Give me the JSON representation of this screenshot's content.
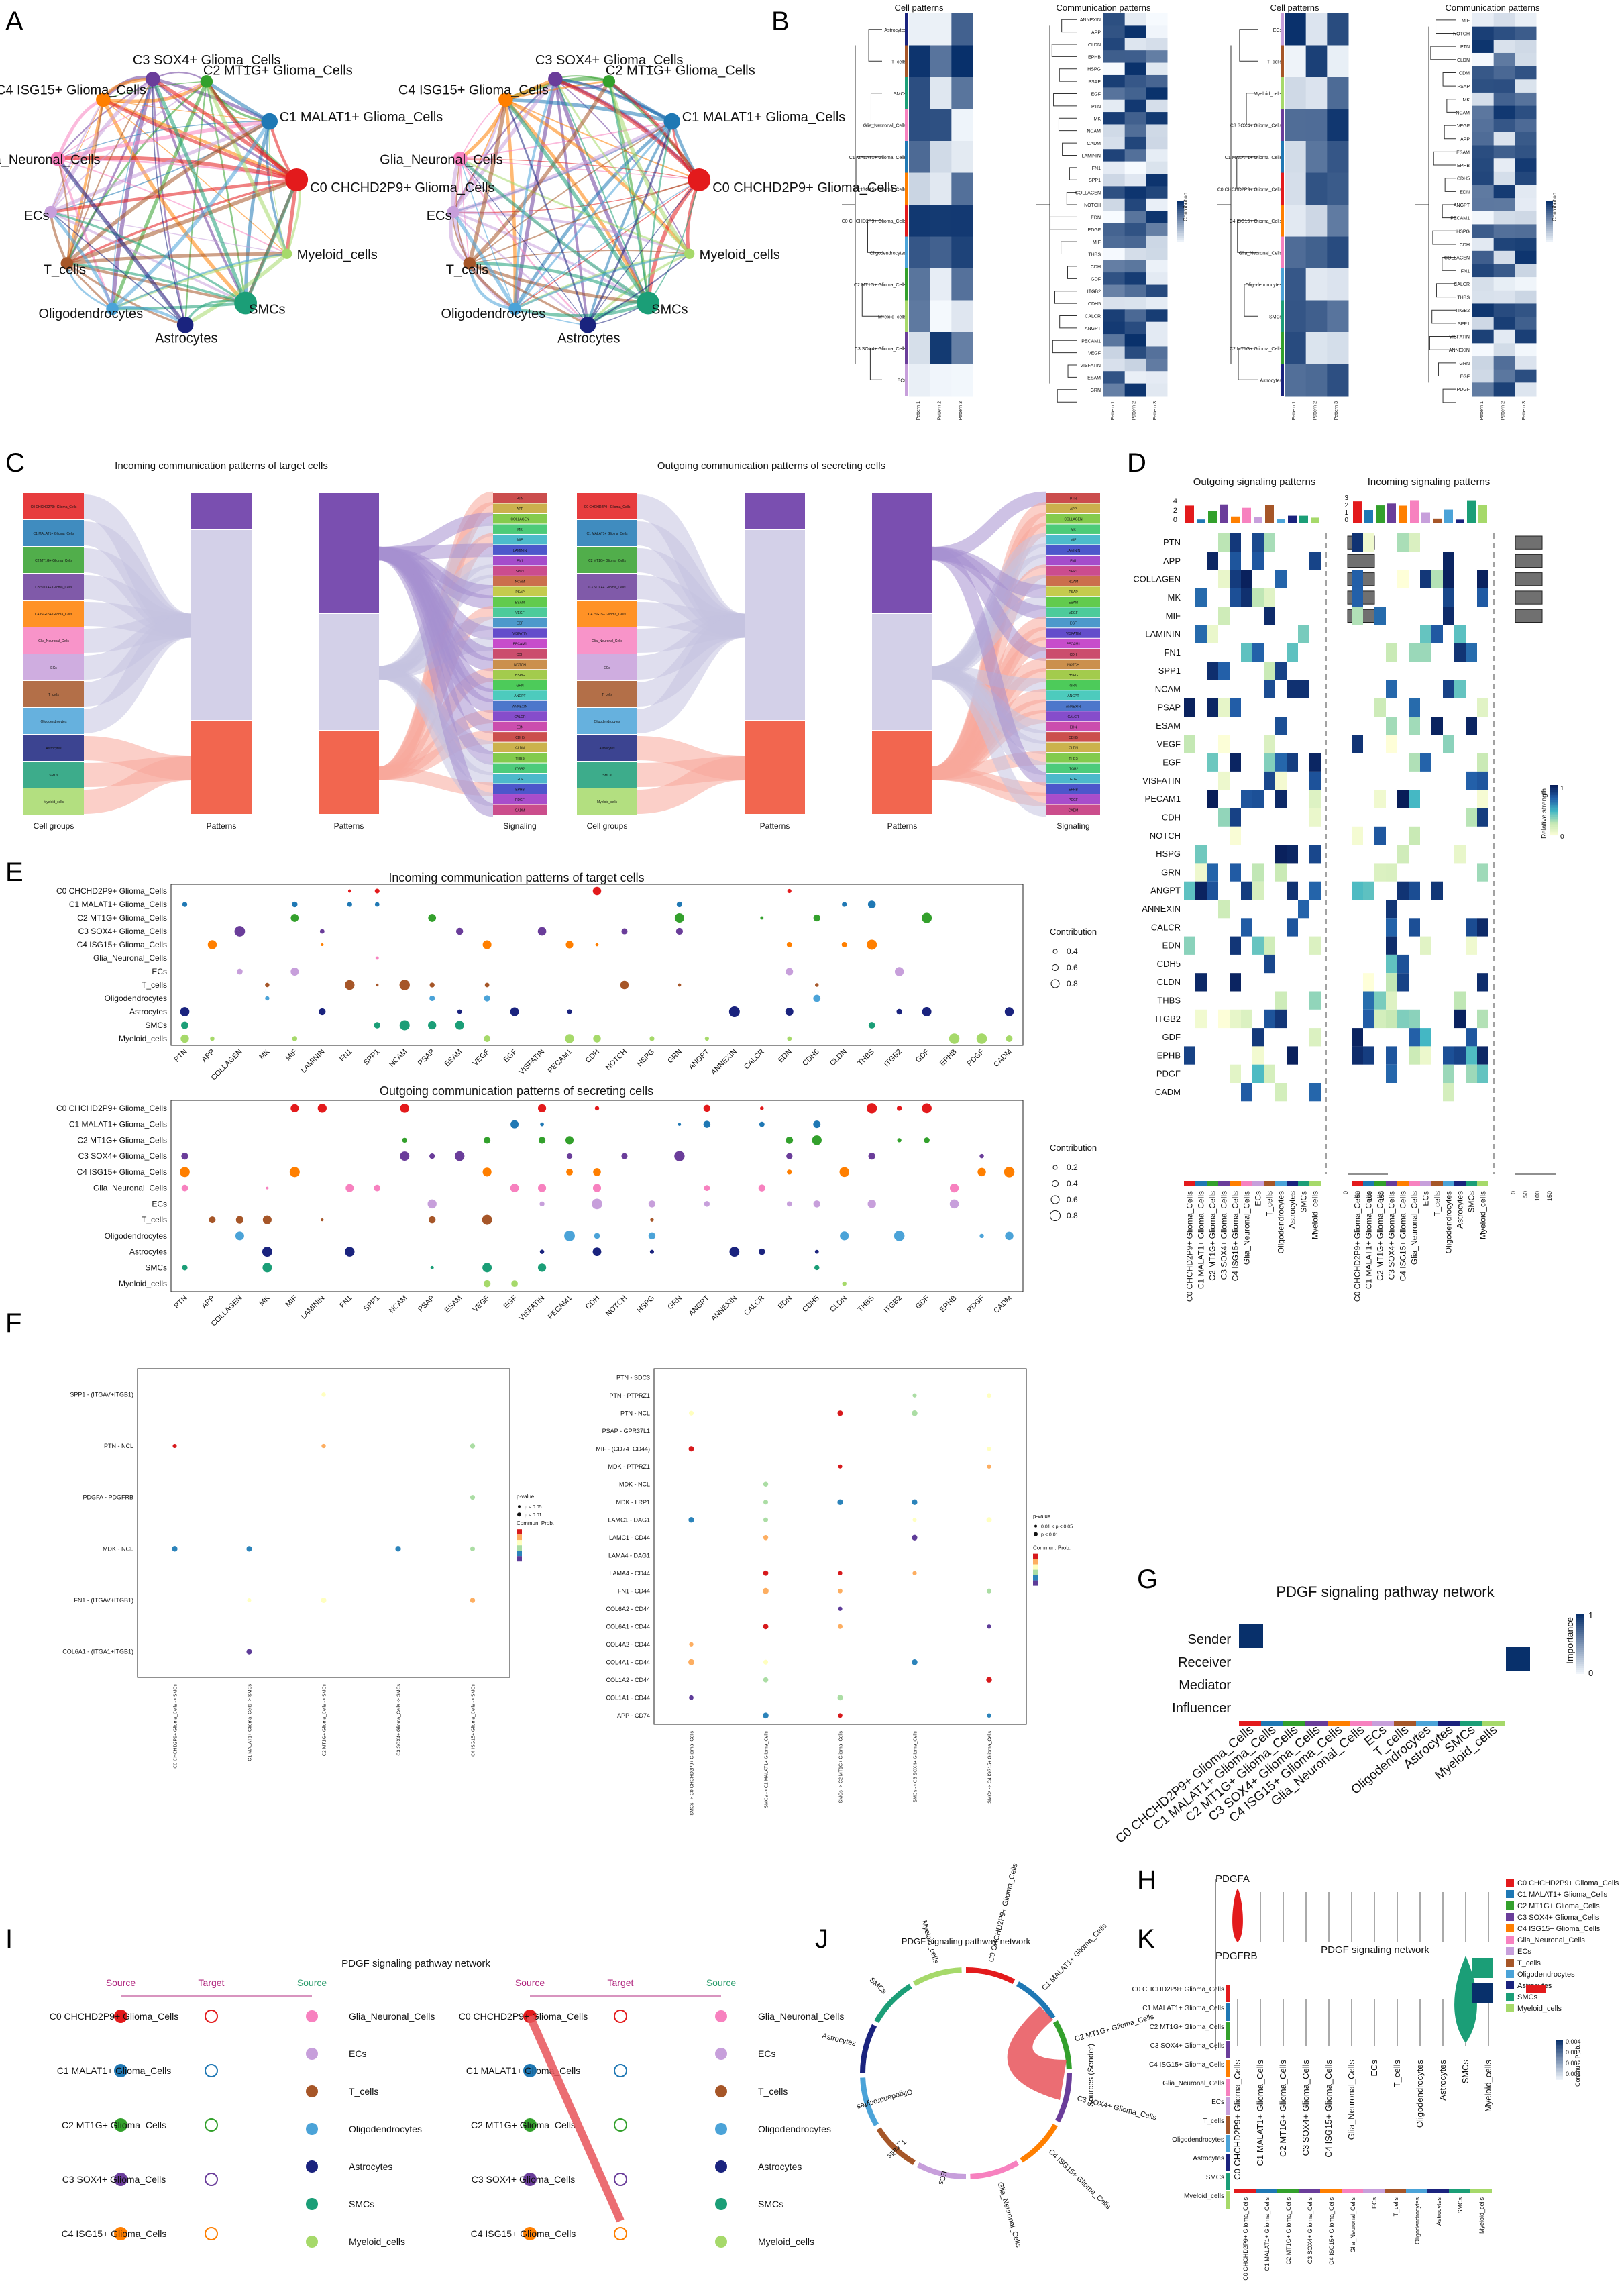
{
  "figure": {
    "panel_labels": [
      "A",
      "B",
      "C",
      "D",
      "E",
      "F",
      "G",
      "H",
      "I",
      "J",
      "K"
    ]
  },
  "groups": {
    "names": [
      "C0 CHCHD2P9+ Glioma_Cells",
      "C1 MALAT1+ Glioma_Cells",
      "C2 MT1G+ Glioma_Cells",
      "C3 SOX4+ Glioma_Cells",
      "C4 ISG15+ Glioma_Cells",
      "Glia_Neuronal_Cells",
      "ECs",
      "T_cells",
      "Oligodendrocytes",
      "Astrocytes",
      "SMCs",
      "Myeloid_cells"
    ],
    "colors": [
      "#e31a1c",
      "#1f78b4",
      "#33a02c",
      "#6a3d9a",
      "#ff7f00",
      "#f781bf",
      "#c79fdb",
      "#a65628",
      "#4ba3d8",
      "#1a237e",
      "#1b9e77",
      "#a6d96a"
    ]
  },
  "panelA": {
    "nodes": [
      "C3 SOX4+ Glioma_Cells",
      "C2 MT1G+ Glioma_Cells",
      "C4 ISG15+ Glioma_Cells",
      "C1 MALAT1+ Glioma_Cells",
      "Glia_Neuronal_Cells",
      "C0 CHCHD2P9+ Glioma_Cells",
      "ECs",
      "Myeloid_cells",
      "T_cells",
      "SMCs",
      "Oligodendrocytes",
      "Astrocytes"
    ]
  },
  "panelB": {
    "left": {
      "title_cell": "Cell patterns",
      "title_comm": "Communication patterns",
      "cell_rows": [
        "Astrocytes",
        "T_cells",
        "SMCs",
        "Glia_Neuronal_Cells",
        "C1 MALAT1+ Glioma_Cells",
        "C4 ISG15+ Glioma_Cells",
        "C0 CHCHD2P9+ Glioma_Cells",
        "Oligodendrocytes",
        "C2 MT1G+ Glioma_Cells",
        "Myeloid_cells",
        "C3 SOX4+ Glioma_Cells",
        "ECs"
      ],
      "comm_rows": [
        "ANNEXIN",
        "APP",
        "CLDN",
        "EPHB",
        "HSPG",
        "PSAP",
        "EGF",
        "PTN",
        "MK",
        "NCAM",
        "CADM",
        "LAMININ",
        "FN1",
        "SPP1",
        "COLLAGEN",
        "NOTCH",
        "EDN",
        "PDGF",
        "MIF",
        "THBS",
        "CDH",
        "GDF",
        "ITGB2",
        "CDH5",
        "CALCR",
        "ANGPT",
        "PECAM1",
        "VEGF",
        "VISFATIN",
        "ESAM",
        "GRN"
      ],
      "legend": "Contribution"
    },
    "right": {
      "title_cell": "Cell patterns",
      "title_comm": "Communication patterns",
      "cell_rows": [
        "ECs",
        "T_cells",
        "Myeloid_cells",
        "C3 SOX4+ Glioma_Cells",
        "C1 MALAT1+ Glioma_Cells",
        "C0 CHCHD2P9+ Glioma_Cells",
        "C4 ISG15+ Glioma_Cells",
        "Glia_Neuronal_Cells",
        "Oligodendrocytes",
        "SMCs",
        "C2 MT1G+ Glioma_Cells",
        "Astrocytes"
      ],
      "comm_rows": [
        "MIF",
        "NOTCH",
        "PTN",
        "CLDN",
        "CDM",
        "PSAP",
        "MK",
        "NCAM",
        "VEGF",
        "APP",
        "ESAM",
        "EPHB",
        "CDH5",
        "EDN",
        "ANGPT",
        "PECAM1",
        "HSPG",
        "CDH",
        "COLLAGEN",
        "FN1",
        "CALCR",
        "THBS",
        "ITGB2",
        "SPP1",
        "VISFATIN",
        "ANNEXIN",
        "GRN",
        "EGF",
        "PDGF"
      ],
      "legend": "Contribution"
    },
    "patterns": [
      "Pattern 1",
      "Pattern 2",
      "Pattern 3"
    ]
  },
  "panelC": {
    "title_left": "Incoming communication patterns of target cells",
    "title_right": "Outgoing communication patterns of secreting cells",
    "axis_labels": [
      "Cell groups",
      "Patterns",
      "Patterns",
      "Signaling"
    ],
    "signals": [
      "PTN",
      "APP",
      "COLLAGEN",
      "MK",
      "MIF",
      "LAMININ",
      "FN1",
      "SPP1",
      "NCAM",
      "PSAP",
      "ESAM",
      "VEGF",
      "EGF",
      "VISFATIN",
      "PECAM1",
      "CDH",
      "NOTCH",
      "HSPG",
      "GRN",
      "ANGPT",
      "ANNEXIN",
      "CALCR",
      "EDN",
      "CDH5",
      "CLDN",
      "THBS",
      "ITGB2",
      "GDF",
      "EPHB",
      "PDGF",
      "CADM"
    ]
  },
  "panelD": {
    "title_out": "Outgoing signaling patterns",
    "title_in": "Incoming signaling patterns",
    "rows": [
      "PTN",
      "APP",
      "COLLAGEN",
      "MK",
      "MIF",
      "LAMININ",
      "FN1",
      "SPP1",
      "NCAM",
      "PSAP",
      "ESAM",
      "VEGF",
      "EGF",
      "VISFATIN",
      "PECAM1",
      "CDH",
      "NOTCH",
      "HSPG",
      "GRN",
      "ANGPT",
      "ANNEXIN",
      "CALCR",
      "EDN",
      "CDH5",
      "CLDN",
      "THBS",
      "ITGB2",
      "GDF",
      "EPHB",
      "PDGF",
      "CADM"
    ],
    "legend": "Relative strength",
    "legend_ticks": [
      "1",
      "0"
    ],
    "bar_axis": [
      "4",
      "2",
      "0"
    ],
    "bar_axis_in": [
      "3",
      "2",
      "1",
      "0"
    ],
    "row_axis": [
      "0",
      "50",
      "100",
      "150"
    ]
  },
  "panelE": {
    "title_in": "Incoming communication patterns of target cells",
    "title_out": "Outgoing communication patterns of secreting cells",
    "legend_title": "Contribution",
    "legend_in": [
      "0.4",
      "0.6",
      "0.8"
    ],
    "legend_out": [
      "0.2",
      "0.4",
      "0.6",
      "0.8"
    ],
    "x_in": [
      "PTN",
      "APP",
      "COLLAGEN",
      "MK",
      "MIF",
      "LAMININ",
      "FN1",
      "SPP1",
      "NCAM",
      "PSAP",
      "ESAM",
      "VEGF",
      "EGF",
      "VISFATIN",
      "PECAM1",
      "CDH",
      "NOTCH",
      "HSPG",
      "GRN",
      "ANGPT",
      "ANNEXIN",
      "CALCR",
      "EDN",
      "CDH5",
      "CLDN",
      "THBS",
      "ITGB2",
      "GDF",
      "EPHB",
      "PDGF",
      "CADM"
    ],
    "x_out": [
      "PTN",
      "APP",
      "COLLAGEN",
      "MK",
      "MIF",
      "LAMININ",
      "FN1",
      "SPP1",
      "NCAM",
      "PSAP",
      "ESAM",
      "VEGF",
      "EGF",
      "VISFATIN",
      "PECAM1",
      "CDH",
      "NOTCH",
      "HSPG",
      "GRN",
      "ANGPT",
      "ANNEXIN",
      "CALCR",
      "EDN",
      "CDH5",
      "CLDN",
      "THBS",
      "ITGB2",
      "GDF",
      "EPHB",
      "PDGF",
      "CADM"
    ]
  },
  "panelF": {
    "left_rows": [
      "SPP1 - (ITGAV+ITGB1)",
      "PTN - NCL",
      "PDGFA - PDGFRB",
      "MDK - NCL",
      "FN1 - (ITGAV+ITGB1)",
      "COL6A1 - (ITGA1+ITGB1)"
    ],
    "left_cols": [
      "C0 CHCHD2P9+ Glioma_Cells -> SMCs",
      "C1 MALAT1+ Glioma_Cells -> SMCs",
      "C2 MT1G+ Glioma_Cells -> SMCs",
      "C3 SOX4+ Glioma_Cells -> SMCs",
      "C4 ISG15+ Glioma_Cells -> SMCs"
    ],
    "right_rows": [
      "PTN - SDC3",
      "PTN - PTPRZ1",
      "PTN - NCL",
      "PSAP - GPR37L1",
      "MIF - (CD74+CD44)",
      "MDK - PTPRZ1",
      "MDK - NCL",
      "MDK - LRP1",
      "LAMC1 - DAG1",
      "LAMC1 - CD44",
      "LAMA4 - DAG1",
      "LAMA4 - CD44",
      "FN1 - CD44",
      "COL6A2 - CD44",
      "COL6A1 - CD44",
      "COL4A2 - CD44",
      "COL4A1 - CD44",
      "COL1A2 - CD44",
      "COL1A1 - CD44",
      "APP - CD74"
    ],
    "right_cols": [
      "SMCs -> C0 CHCHD2P9+ Glioma_Cells",
      "SMCs -> C1 MALAT1+ Glioma_Cells",
      "SMCs -> C2 MT1G+ Glioma_Cells",
      "SMCs -> C3 SOX4+ Glioma_Cells",
      "SMCs -> C4 ISG15+ Glioma_Cells"
    ],
    "pval_title": "p-value",
    "pval_left": [
      "p < 0.05",
      "p < 0.01"
    ],
    "pval_right": [
      "0.01 < p < 0.05",
      "p < 0.01"
    ],
    "prob_title": "Commun. Prob."
  },
  "panelG": {
    "title": "PDGF signaling pathway network",
    "rows": [
      "Sender",
      "Receiver",
      "Mediator",
      "Influencer"
    ],
    "legend": "Importance",
    "legend_ticks": [
      "1",
      "0"
    ]
  },
  "panelH": {
    "genes": [
      "PDGFA",
      "PDGFRB"
    ]
  },
  "panelI": {
    "title": "PDGF signaling pathway network",
    "source": "Source",
    "target": "Target",
    "left_sources": [
      "C0 CHCHD2P9+ Glioma_Cells",
      "C1 MALAT1+ Glioma_Cells",
      "C2 MT1G+ Glioma_Cells",
      "C3 SOX4+ Glioma_Cells",
      "C4 ISG15+ Glioma_Cells"
    ],
    "right_sources": [
      "Glia_Neuronal_Cells",
      "ECs",
      "T_cells",
      "Oligodendrocytes",
      "Astrocytes",
      "SMCs",
      "Myeloid_cells"
    ]
  },
  "panelJ": {
    "title": "PDGF signaling pathway network",
    "sources_label": "Sources (Sender)"
  },
  "panelK": {
    "title": "PDGF signaling network",
    "legend": "Commun. Prob.",
    "legend_ticks": [
      "0.004",
      "0.003",
      "0.002",
      "0.001"
    ]
  }
}
